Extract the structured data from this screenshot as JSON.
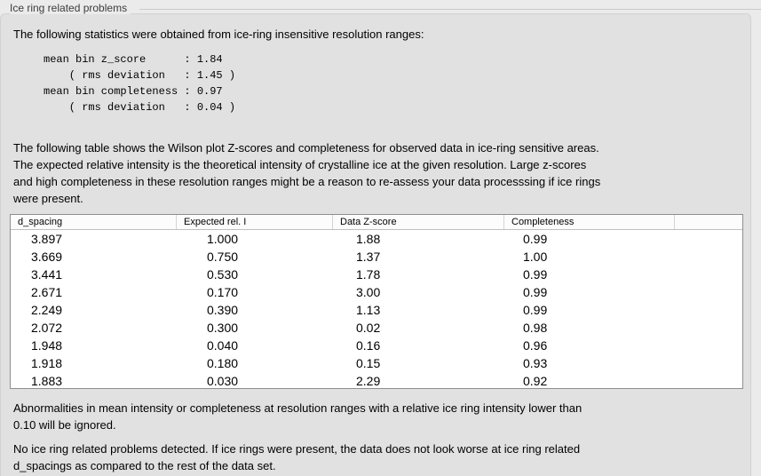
{
  "title": "Ice ring related problems",
  "stats_intro": "The following statistics were obtained from ice-ring insensitive resolution ranges:",
  "stats_block": "mean bin z_score      : 1.84\n    ( rms deviation   : 1.45 )\nmean bin completeness : 0.97\n    ( rms deviation   : 0.04 )",
  "stats": {
    "mean_bin_z_score": "1.84",
    "z_score_rms_deviation": "1.45",
    "mean_bin_completeness": "0.97",
    "completeness_rms_deviation": "0.04"
  },
  "table_description": "The following table shows the Wilson plot Z-scores and completeness for observed data in ice-ring sensitive areas.\nThe expected relative intensity is the theoretical intensity of crystalline ice at the given resolution. Large z-scores\nand high completeness in these resolution ranges might be a reason to re-assess your data processsing if ice rings\nwere present.",
  "table": {
    "columns": [
      "d_spacing",
      "Expected rel. I",
      "Data Z-score",
      "Completeness"
    ],
    "rows": [
      [
        "3.897",
        "1.000",
        "1.88",
        "0.99"
      ],
      [
        "3.669",
        "0.750",
        "1.37",
        "1.00"
      ],
      [
        "3.441",
        "0.530",
        "1.78",
        "0.99"
      ],
      [
        "2.671",
        "0.170",
        "3.00",
        "0.99"
      ],
      [
        "2.249",
        "0.390",
        "1.13",
        "0.99"
      ],
      [
        "2.072",
        "0.300",
        "0.02",
        "0.98"
      ],
      [
        "1.948",
        "0.040",
        "0.16",
        "0.96"
      ],
      [
        "1.918",
        "0.180",
        "0.15",
        "0.93"
      ],
      [
        "1.883",
        "0.030",
        "2.29",
        "0.92"
      ]
    ]
  },
  "ignore_note": "Abnormalities in mean intensity or completeness at resolution ranges with a relative ice ring intensity lower than\n0.10 will be ignored.",
  "conclusion": "No ice ring related problems detected. If ice rings were present, the data does not look worse at ice ring related\nd_spacings as compared to the rest of the data set.",
  "colors": {
    "page_bg": "#ebebeb",
    "panel_bg": "#e1e1e1",
    "table_bg": "#ffffff",
    "table_border": "#8e8e8e",
    "groupbox_line": "#c9c9c9"
  }
}
